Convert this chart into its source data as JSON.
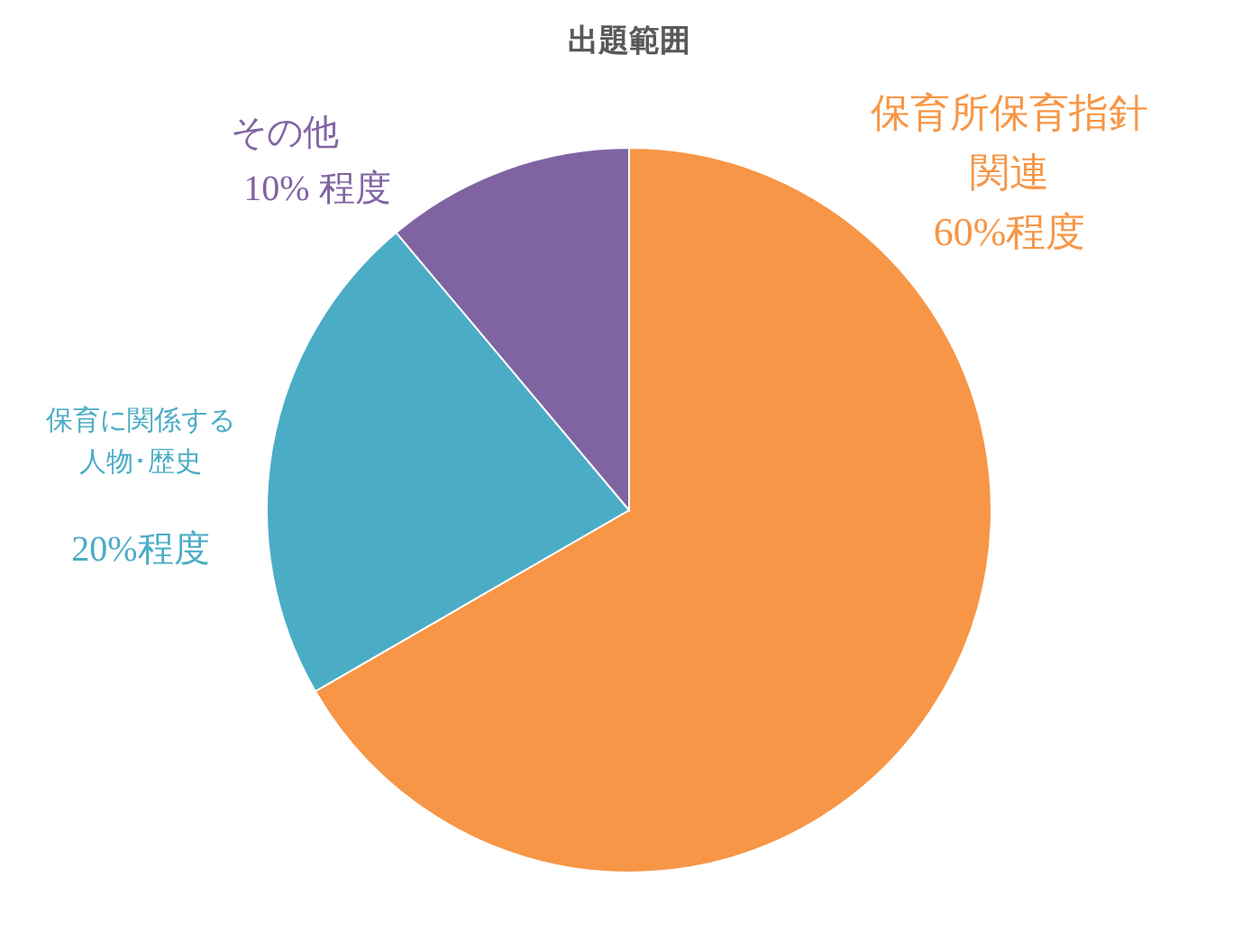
{
  "chart_data": {
    "type": "pie",
    "title": "出題範囲",
    "categories": [
      "保育所保育指針関連",
      "保育に関係する人物･歴史",
      "その他"
    ],
    "values": [
      60,
      20,
      10
    ],
    "colors": [
      "#f79646",
      "#4bacc6",
      "#8064a2"
    ],
    "value_labels": [
      "60%程度",
      "20%程度",
      "10% 程度"
    ]
  }
}
